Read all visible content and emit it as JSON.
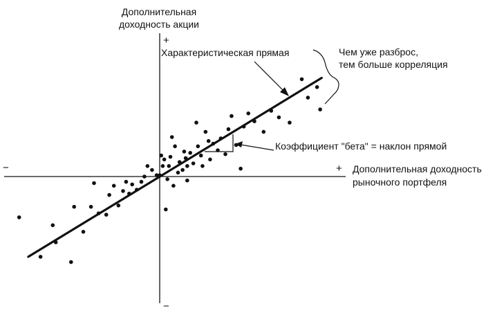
{
  "chart_data": {
    "type": "scatter",
    "title": "",
    "ylabel_line1": "Дополнительная",
    "ylabel_line2": "доходность акции",
    "xlabel_line1": "Дополнительная доходность",
    "xlabel_line2": "рыночного портфеля",
    "y_plus": "+",
    "y_minus": "−",
    "x_plus": "+",
    "x_minus": "−",
    "annotations": {
      "line_label": "Характеристическая прямая",
      "spread_line1": "Чем уже разброс,",
      "spread_line2": "тем больше корреляция",
      "beta_label": "Коэффициент \"бета\" = наклон прямой"
    },
    "xlim": [
      -1.0,
      1.0
    ],
    "ylim": [
      -1.0,
      1.0
    ],
    "grid": false,
    "line": {
      "x0": -0.86,
      "y0": -0.61,
      "x1": 1.06,
      "y1": 0.75
    },
    "points": [
      [
        -0.92,
        -0.31
      ],
      [
        -0.78,
        -0.61
      ],
      [
        -0.7,
        -0.37
      ],
      [
        -0.68,
        -0.5
      ],
      [
        -0.58,
        -0.65
      ],
      [
        -0.56,
        -0.23
      ],
      [
        -0.5,
        -0.42
      ],
      [
        -0.45,
        -0.23
      ],
      [
        -0.43,
        -0.05
      ],
      [
        -0.4,
        -0.28
      ],
      [
        -0.35,
        -0.29
      ],
      [
        -0.33,
        -0.14
      ],
      [
        -0.3,
        -0.07
      ],
      [
        -0.27,
        -0.22
      ],
      [
        -0.24,
        -0.11
      ],
      [
        -0.22,
        -0.04
      ],
      [
        -0.2,
        -0.13
      ],
      [
        -0.18,
        -0.06
      ],
      [
        -0.15,
        -0.1
      ],
      [
        -0.12,
        -0.04
      ],
      [
        -0.1,
        0.0
      ],
      [
        -0.08,
        0.08
      ],
      [
        -0.05,
        0.05
      ],
      [
        -0.02,
        0.01
      ],
      [
        0.0,
        0.01
      ],
      [
        0.01,
        0.16
      ],
      [
        0.02,
        0.08
      ],
      [
        0.03,
        0.13
      ],
      [
        0.05,
        -0.02
      ],
      [
        0.06,
        0.08
      ],
      [
        0.07,
        0.15
      ],
      [
        0.08,
        0.3
      ],
      [
        0.09,
        -0.07
      ],
      [
        0.1,
        0.23
      ],
      [
        0.12,
        0.03
      ],
      [
        0.13,
        0.11
      ],
      [
        0.15,
        0.05
      ],
      [
        0.16,
        0.19
      ],
      [
        0.17,
        0.14
      ],
      [
        0.18,
        -0.03
      ],
      [
        0.18,
        0.08
      ],
      [
        0.2,
        0.18
      ],
      [
        0.22,
        0.1
      ],
      [
        0.24,
        0.41
      ],
      [
        0.25,
        0.23
      ],
      [
        0.27,
        0.16
      ],
      [
        0.28,
        0.08
      ],
      [
        0.3,
        0.34
      ],
      [
        0.32,
        0.27
      ],
      [
        0.33,
        0.13
      ],
      [
        0.35,
        0.25
      ],
      [
        0.38,
        0.2
      ],
      [
        0.4,
        0.29
      ],
      [
        0.43,
        0.17
      ],
      [
        0.45,
        0.36
      ],
      [
        0.47,
        0.46
      ],
      [
        0.5,
        0.24
      ],
      [
        0.53,
        0.06
      ],
      [
        0.55,
        0.38
      ],
      [
        0.58,
        0.48
      ],
      [
        0.62,
        0.42
      ],
      [
        0.68,
        0.34
      ],
      [
        0.73,
        0.5
      ],
      [
        0.78,
        0.45
      ],
      [
        0.85,
        0.41
      ],
      [
        0.93,
        0.74
      ],
      [
        0.97,
        0.6
      ],
      [
        1.03,
        0.68
      ],
      [
        1.05,
        0.51
      ],
      [
        0.04,
        -0.25
      ]
    ]
  }
}
